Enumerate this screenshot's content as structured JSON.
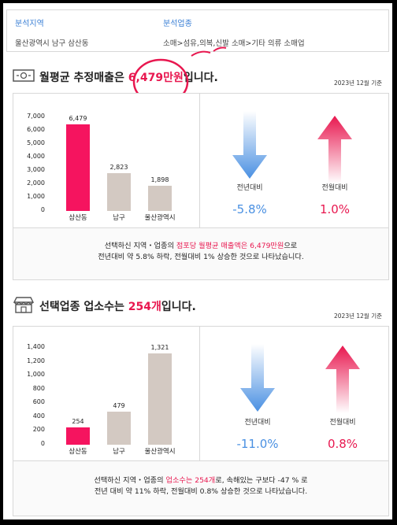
{
  "header": {
    "region_label": "분석지역",
    "region_value": "울산광역시 남구 삼산동",
    "industry_label": "분석업종",
    "industry_value": "소매>섬유,의복,신발 소매>기타 의류 소매업"
  },
  "sales": {
    "title_prefix": "월평균 추정매출은 ",
    "title_value": "6,479만원",
    "title_suffix": "입니다.",
    "date": "2023년 12월 기준",
    "yoy_label": "전년대비",
    "yoy_value": "-5.8%",
    "mom_label": "전월대비",
    "mom_value": "1.0%",
    "note_line1_a": "선택하신 지역・업종의 ",
    "note_line1_hl": "점포당 월평균 매출액은 6,479만원",
    "note_line1_b": "으로",
    "note_line2": "전년대비 약 5.8% 하락, 전월대비 1% 상승한 것으로 나타났습니다."
  },
  "stores": {
    "title_prefix": "선택업종 업소수는 ",
    "title_value": "254개",
    "title_suffix": "입니다.",
    "date": "2023년 12월 기준",
    "yoy_label": "전년대비",
    "yoy_value": "-11.0%",
    "mom_label": "전월대비",
    "mom_value": "0.8%",
    "note_line1_a": "선택하신 지역・업종의 ",
    "note_line1_hl": "업소수는 254개",
    "note_line1_b": "로, 속해있는 구보다 -47 % 로",
    "note_line2": "전년 대비 약 11% 하락, 전월대비 0.8% 상승한 것으로 나타났습니다."
  },
  "colors": {
    "highlight": "#e8174f",
    "bar_main": "#f5145f",
    "bar_other": "#d3c9c2",
    "blue": "#4a90e2",
    "red": "#e8174f"
  },
  "chart_data": [
    {
      "type": "bar",
      "title": "",
      "categories": [
        "삼산동",
        "남구",
        "울산광역시"
      ],
      "values": [
        6479,
        2823,
        1898
      ],
      "data_labels": [
        "6,479",
        "2,823",
        "1,898"
      ],
      "yticks": [
        "7,000",
        "6,000",
        "5,000",
        "4,000",
        "3,000",
        "2,000",
        "1,000",
        "0"
      ],
      "ylim": [
        0,
        7000
      ]
    },
    {
      "type": "bar",
      "title": "",
      "categories": [
        "삼산동",
        "남구",
        "울산광역시"
      ],
      "values": [
        254,
        479,
        1321
      ],
      "data_labels": [
        "254",
        "479",
        "1,321"
      ],
      "yticks": [
        "1,400",
        "1,200",
        "1,000",
        "800",
        "600",
        "400",
        "200",
        "0"
      ],
      "ylim": [
        0,
        1400
      ]
    }
  ]
}
